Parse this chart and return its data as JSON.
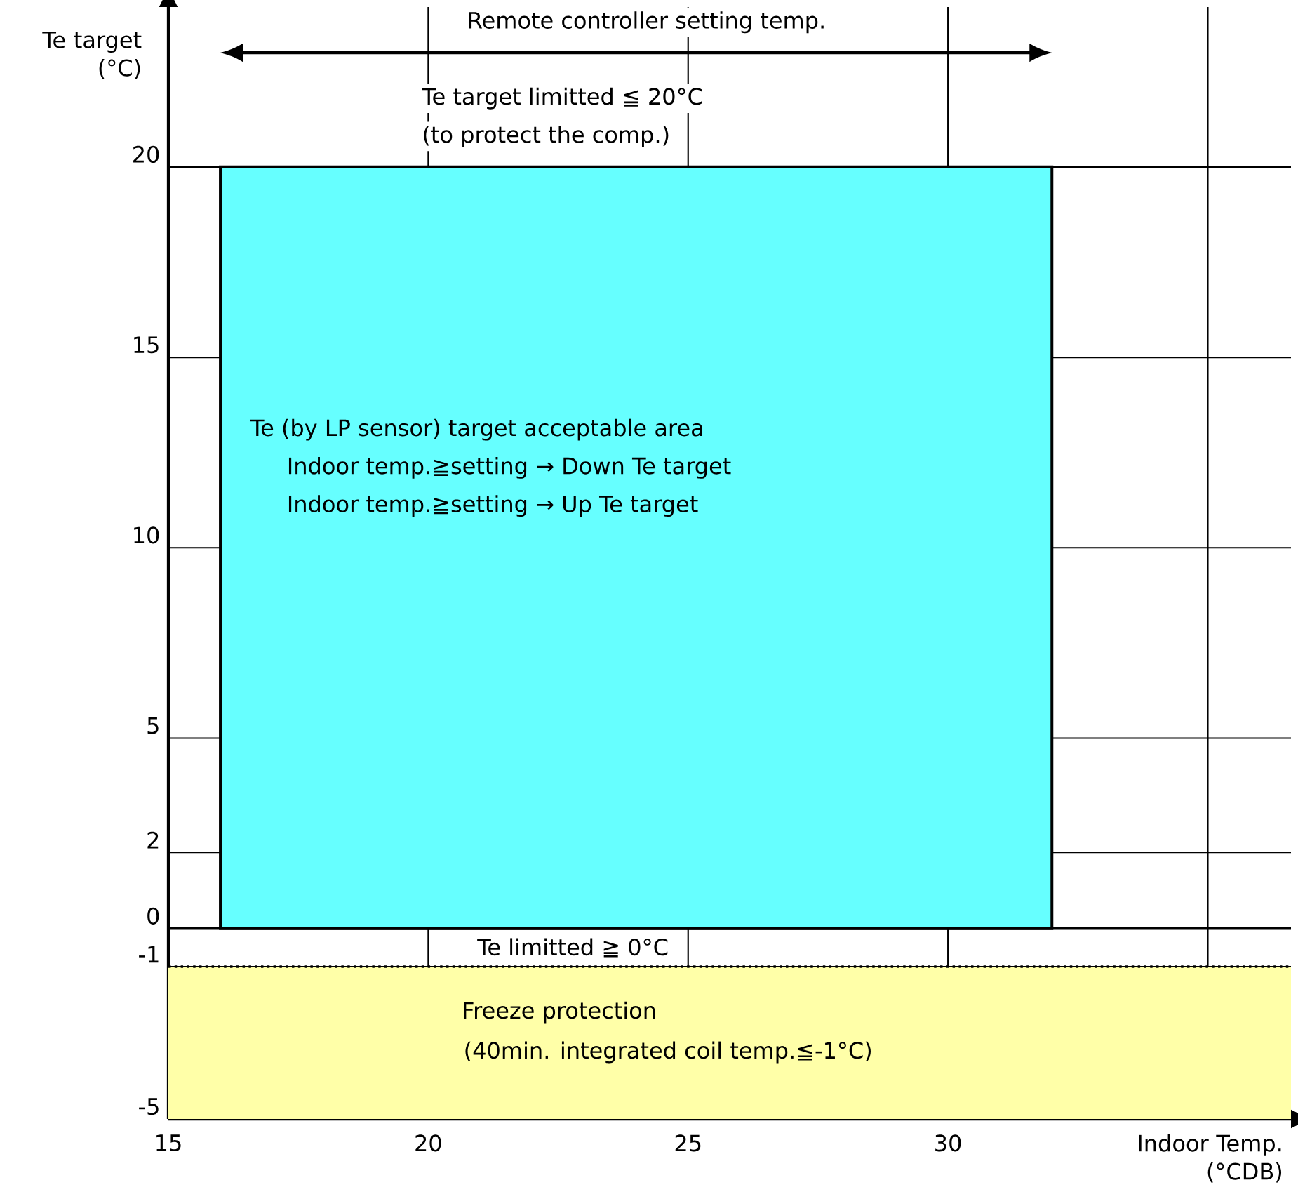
{
  "chart_data": {
    "type": "area",
    "xlabel": "Indoor Temp. (°CDB)",
    "ylabel": "Te target (°C)",
    "x": [
      16,
      32
    ],
    "series": [
      {
        "color": "#66ffff",
        "values": [
          20,
          20
        ]
      }
    ],
    "xlim": [
      15,
      36.6
    ],
    "ylim": [
      -5,
      24.2
    ],
    "xticks": [
      15,
      20,
      25,
      30,
      {
        "value": 35,
        "label": null
      }
    ],
    "yticks": [
      -5,
      -1,
      0,
      2,
      5,
      10,
      15,
      20
    ],
    "grid": true,
    "ref_lines": [
      {
        "axis": "y",
        "value": 0,
        "label": "Te limitted ≧ 0°C",
        "color": "#000000",
        "line_style": "solid"
      },
      {
        "axis": "y",
        "value": -1,
        "color": "#000000",
        "line_style": "dotted"
      }
    ],
    "bands": [
      {
        "axis": "y",
        "from": -5,
        "to": -1,
        "label": "Freeze protection",
        "color": "#ffffa8"
      }
    ],
    "annotations": [
      "Remote controller setting temp.",
      "Te target limitted ≦ 20°C",
      "(to protect the comp.)",
      "Te (by LP sensor) target acceptable area",
      "Indoor temp.≧setting → Down Te target",
      "Indoor temp.≧setting → Up Te target",
      "(40min. integrated  coil temp.≦-1°C)"
    ]
  }
}
